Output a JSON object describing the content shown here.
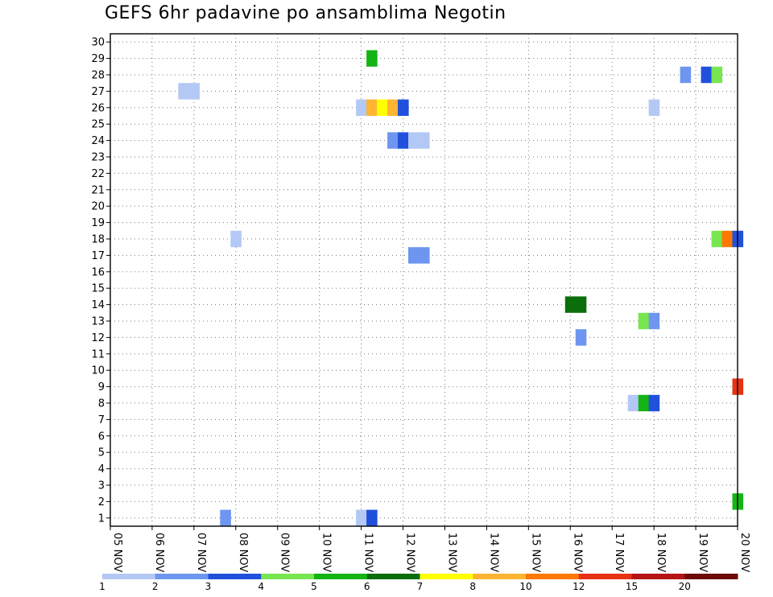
{
  "chart_data": {
    "type": "heatmap",
    "title": "GEFS 6hr padavine po ansamblima Negotin",
    "xlabel": "",
    "ylabel": "",
    "x_ticks": [
      "05 NOV",
      "06 NOV",
      "07 NOV",
      "08 NOV",
      "09 NOV",
      "10 NOV",
      "11 NOV",
      "12 NOV",
      "13 NOV",
      "14 NOV",
      "15 NOV",
      "16 NOV",
      "17 NOV",
      "18 NOV",
      "19 NOV",
      "20 NOV"
    ],
    "y_ticks": [
      1,
      2,
      3,
      4,
      5,
      6,
      7,
      8,
      9,
      10,
      11,
      12,
      13,
      14,
      15,
      16,
      17,
      18,
      19,
      20,
      21,
      22,
      23,
      24,
      25,
      26,
      27,
      28,
      29,
      30
    ],
    "x_range_days": [
      0,
      15
    ],
    "y_range": [
      0.5,
      30.5
    ],
    "grid": true,
    "colorbar": {
      "labels": [
        "1",
        "2",
        "3",
        "4",
        "5",
        "6",
        "7",
        "8",
        "10",
        "12",
        "15",
        "20"
      ],
      "colors": [
        "#b4c8f5",
        "#6e96f0",
        "#2050dc",
        "#78e650",
        "#14b414",
        "#0a6e0a",
        "#ffff00",
        "#ffb432",
        "#ff7800",
        "#e63214",
        "#b41414",
        "#6e0a0a"
      ]
    },
    "cells": [
      {
        "member": 29,
        "t": 6.25,
        "level": 4
      },
      {
        "member": 28,
        "t": 13.75,
        "level": 1
      },
      {
        "member": 28,
        "t": 14.25,
        "level": 2
      },
      {
        "member": 28,
        "t": 14.5,
        "level": 3
      },
      {
        "member": 27,
        "t": 1.75,
        "level": 0
      },
      {
        "member": 27,
        "t": 2.0,
        "level": 0
      },
      {
        "member": 26,
        "t": 6.0,
        "level": 0
      },
      {
        "member": 26,
        "t": 6.25,
        "level": 7
      },
      {
        "member": 26,
        "t": 6.5,
        "level": 6
      },
      {
        "member": 26,
        "t": 6.75,
        "level": 7
      },
      {
        "member": 26,
        "t": 7.0,
        "level": 2
      },
      {
        "member": 26,
        "t": 13.0,
        "level": 0
      },
      {
        "member": 24,
        "t": 6.75,
        "level": 1
      },
      {
        "member": 24,
        "t": 7.0,
        "level": 2
      },
      {
        "member": 24,
        "t": 7.25,
        "level": 0
      },
      {
        "member": 24,
        "t": 7.5,
        "level": 0
      },
      {
        "member": 18,
        "t": 3.0,
        "level": 0
      },
      {
        "member": 18,
        "t": 14.5,
        "level": 3
      },
      {
        "member": 18,
        "t": 14.75,
        "level": 8
      },
      {
        "member": 18,
        "t": 15.0,
        "level": 2
      },
      {
        "member": 17,
        "t": 7.25,
        "level": 1
      },
      {
        "member": 17,
        "t": 7.5,
        "level": 1
      },
      {
        "member": 14,
        "t": 11.0,
        "level": 5
      },
      {
        "member": 14,
        "t": 11.25,
        "level": 5
      },
      {
        "member": 13,
        "t": 12.75,
        "level": 3
      },
      {
        "member": 13,
        "t": 13.0,
        "level": 1
      },
      {
        "member": 12,
        "t": 11.25,
        "level": 1
      },
      {
        "member": 9,
        "t": 15.0,
        "level": 9
      },
      {
        "member": 8,
        "t": 12.5,
        "level": 0
      },
      {
        "member": 8,
        "t": 12.75,
        "level": 4
      },
      {
        "member": 8,
        "t": 13.0,
        "level": 2
      },
      {
        "member": 2,
        "t": 15.0,
        "level": 4
      },
      {
        "member": 1,
        "t": 2.75,
        "level": 1
      },
      {
        "member": 1,
        "t": 6.0,
        "level": 0
      },
      {
        "member": 1,
        "t": 6.25,
        "level": 2
      }
    ]
  }
}
